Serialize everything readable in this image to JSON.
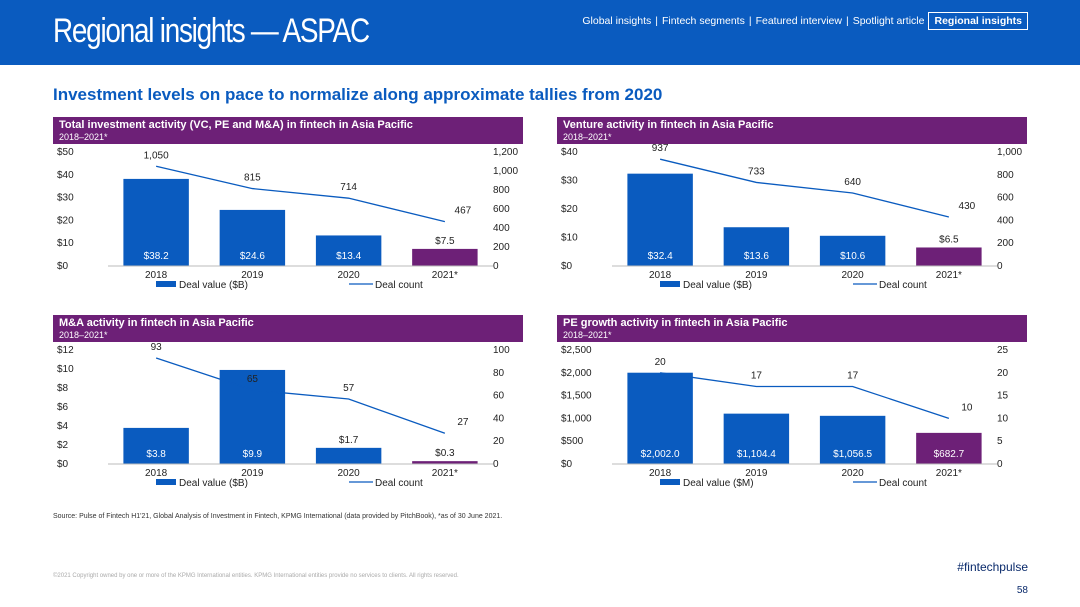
{
  "header": {
    "title": "Regional insights — ASPAC",
    "nav": [
      {
        "label": "Global insights",
        "active": false
      },
      {
        "label": "Fintech segments",
        "active": false
      },
      {
        "label": "Featured interview",
        "active": false
      },
      {
        "label": "Spotlight article",
        "active": false
      },
      {
        "label": "Regional insights",
        "active": true
      }
    ]
  },
  "headline": "Investment levels on pace to normalize along approximate tallies from 2020",
  "colors": {
    "brand_blue": "#0a5bbf",
    "panel_purple": "#6d2077",
    "bar_blue": "#0a5bbf",
    "bar_purple": "#6d2077",
    "line": "#0a5bbf"
  },
  "chart_data": [
    {
      "id": "total",
      "type": "bar",
      "title": "Total investment activity (VC, PE and M&A) in fintech in Asia Pacific",
      "subtitle": "2018–2021*",
      "categories": [
        "2018",
        "2019",
        "2020",
        "2021*"
      ],
      "series": [
        {
          "name": "Deal value ($B)",
          "axis": "left",
          "values": [
            38.2,
            24.6,
            13.4,
            7.5
          ],
          "labels": [
            "$38.2",
            "$24.6",
            "$13.4",
            "$7.5"
          ]
        },
        {
          "name": "Deal count",
          "axis": "right",
          "type": "line",
          "values": [
            1050,
            815,
            714,
            467
          ],
          "labels": [
            "1,050",
            "815",
            "714",
            "467"
          ]
        }
      ],
      "left_axis": {
        "min": 0,
        "max": 50,
        "ticks": [
          "$0",
          "$10",
          "$20",
          "$30",
          "$40",
          "$50"
        ]
      },
      "right_axis": {
        "min": 0,
        "max": 1200,
        "ticks": [
          "0",
          "200",
          "400",
          "600",
          "800",
          "1,000",
          "1,200"
        ]
      },
      "legend": [
        "Deal value ($B)",
        "Deal count"
      ]
    },
    {
      "id": "venture",
      "type": "bar",
      "title": "Venture activity in fintech in Asia Pacific",
      "subtitle": "2018–2021*",
      "categories": [
        "2018",
        "2019",
        "2020",
        "2021*"
      ],
      "series": [
        {
          "name": "Deal value ($B)",
          "axis": "left",
          "values": [
            32.4,
            13.6,
            10.6,
            6.5
          ],
          "labels": [
            "$32.4",
            "$13.6",
            "$10.6",
            "$6.5"
          ]
        },
        {
          "name": "Deal count",
          "axis": "right",
          "type": "line",
          "values": [
            937,
            733,
            640,
            430
          ],
          "labels": [
            "937",
            "733",
            "640",
            "430"
          ]
        }
      ],
      "left_axis": {
        "min": 0,
        "max": 40,
        "ticks": [
          "$0",
          "$10",
          "$20",
          "$30",
          "$40"
        ]
      },
      "right_axis": {
        "min": 0,
        "max": 1000,
        "ticks": [
          "0",
          "200",
          "400",
          "600",
          "800",
          "1,000"
        ]
      },
      "legend": [
        "Deal value ($B)",
        "Deal count"
      ]
    },
    {
      "id": "ma",
      "type": "bar",
      "title": "M&A activity in fintech in Asia Pacific",
      "subtitle": "2018–2021*",
      "categories": [
        "2018",
        "2019",
        "2020",
        "2021*"
      ],
      "series": [
        {
          "name": "Deal value ($B)",
          "axis": "left",
          "values": [
            3.8,
            9.9,
            1.7,
            0.3
          ],
          "labels": [
            "$3.8",
            "$9.9",
            "$1.7",
            "$0.3"
          ]
        },
        {
          "name": "Deal count",
          "axis": "right",
          "type": "line",
          "values": [
            93,
            65,
            57,
            27
          ],
          "labels": [
            "93",
            "65",
            "57",
            "27"
          ]
        }
      ],
      "left_axis": {
        "min": 0,
        "max": 12,
        "ticks": [
          "$0",
          "$2",
          "$4",
          "$6",
          "$8",
          "$10",
          "$12"
        ]
      },
      "right_axis": {
        "min": 0,
        "max": 100,
        "ticks": [
          "0",
          "20",
          "40",
          "60",
          "80",
          "100"
        ]
      },
      "legend": [
        "Deal value ($B)",
        "Deal count"
      ]
    },
    {
      "id": "pe",
      "type": "bar",
      "title": "PE growth activity in fintech in Asia Pacific",
      "subtitle": "2018–2021*",
      "categories": [
        "2018",
        "2019",
        "2020",
        "2021*"
      ],
      "series": [
        {
          "name": "Deal value ($M)",
          "axis": "left",
          "values": [
            2002.0,
            1104.4,
            1056.5,
            682.7
          ],
          "labels": [
            "$2,002.0",
            "$1,104.4",
            "$1,056.5",
            "$682.7"
          ]
        },
        {
          "name": "Deal count",
          "axis": "right",
          "type": "line",
          "values": [
            20,
            17,
            17,
            10
          ],
          "labels": [
            "20",
            "17",
            "17",
            "10"
          ]
        }
      ],
      "left_axis": {
        "min": 0,
        "max": 2500,
        "ticks": [
          "$0",
          "$500",
          "$1,000",
          "$1,500",
          "$2,000",
          "$2,500"
        ]
      },
      "right_axis": {
        "min": 0,
        "max": 25,
        "ticks": [
          "0",
          "5",
          "10",
          "15",
          "20",
          "25"
        ]
      },
      "legend": [
        "Deal value ($M)",
        "Deal count"
      ]
    }
  ],
  "footer": {
    "source": "Source: Pulse of Fintech H1'21, Global Analysis of Investment in Fintech, KPMG International (data provided by PitchBook), *as of 30 June 2021.",
    "copyright": "©2021 Copyright owned by one or more of the KPMG International entities. KPMG International entities provide no services to clients. All rights reserved.",
    "hashtag": "#fintechpulse",
    "page": "58"
  }
}
